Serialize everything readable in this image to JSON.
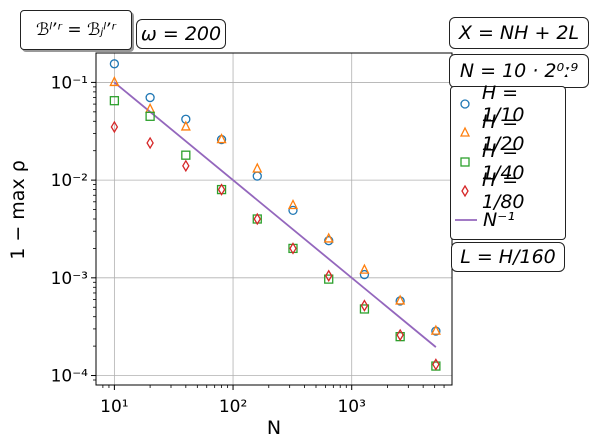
{
  "annotations": {
    "top_left": "ℬˡʼʳ = ℬⱼˡʼʳ",
    "omega": "ω = 200",
    "x_def": "X = NH + 2L",
    "n_def": "N = 10 · 2⁰ː⁹",
    "l_def": "L = H/160"
  },
  "chart_data": {
    "type": "scatter",
    "xscale": "log",
    "yscale": "log",
    "xlim": [
      7,
      7000
    ],
    "ylim": [
      8e-05,
      0.2
    ],
    "xlabel": "N",
    "ylabel": "1 − max ρ",
    "grid": true,
    "legend_placement": "right",
    "x": [
      10,
      20,
      40,
      80,
      160,
      320,
      640,
      1280,
      2560,
      5120
    ],
    "xticks": [
      {
        "value": 10,
        "label": "10¹"
      },
      {
        "value": 100,
        "label": "10²"
      },
      {
        "value": 1000,
        "label": "10³"
      }
    ],
    "yticks": [
      {
        "value": 0.1,
        "label": "10⁻¹"
      },
      {
        "value": 0.01,
        "label": "10⁻²"
      },
      {
        "value": 0.001,
        "label": "10⁻³"
      },
      {
        "value": 0.0001,
        "label": "10⁻⁴"
      }
    ],
    "series": [
      {
        "name": "H = 1/10",
        "marker": "circle",
        "color": "#1f77b4",
        "values": [
          0.155,
          0.07,
          0.042,
          0.026,
          0.011,
          0.0049,
          0.0024,
          0.00108,
          0.00058,
          0.000285
        ]
      },
      {
        "name": "H = 1/20",
        "marker": "triangle",
        "color": "#ff7f0e",
        "values": [
          0.1,
          0.053,
          0.035,
          0.026,
          0.013,
          0.0055,
          0.0025,
          0.0012,
          0.00058,
          0.000285
        ]
      },
      {
        "name": "H = 1/40",
        "marker": "square",
        "color": "#2ca02c",
        "values": [
          0.065,
          0.045,
          0.018,
          0.008,
          0.004,
          0.002,
          0.00097,
          0.00048,
          0.00025,
          0.000125
        ]
      },
      {
        "name": "H = 1/80",
        "marker": "diamond",
        "color": "#d62728",
        "values": [
          0.035,
          0.024,
          0.014,
          0.008,
          0.004,
          0.002,
          0.00105,
          0.00052,
          0.00026,
          0.00013
        ]
      }
    ],
    "reference_line": {
      "name": "N⁻¹",
      "color": "#9467bd",
      "x": [
        10,
        5120
      ],
      "y": [
        0.1,
        0.0001953
      ]
    }
  }
}
